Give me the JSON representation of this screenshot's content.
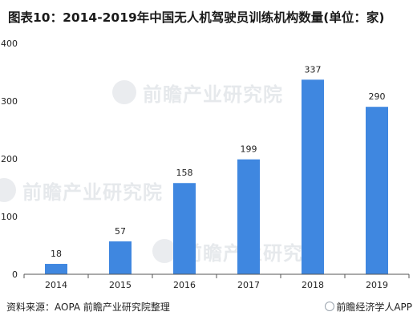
{
  "title": "图表10：2014-2019年中国无人机驾驶员训练机构数量(单位：家)",
  "source": "资料来源：AOPA 前瞻产业研究院整理",
  "app_mark": "前瞻经济学人APP",
  "watermark": "前瞻产业研究院",
  "chart_data": {
    "type": "bar",
    "categories": [
      "2014",
      "2015",
      "2016",
      "2017",
      "2018",
      "2019"
    ],
    "values": [
      18,
      57,
      158,
      199,
      337,
      290
    ],
    "ylim": [
      0,
      400
    ],
    "yticks": [
      0,
      100,
      200,
      300,
      400
    ],
    "bar_color": "#3f87e0",
    "grid": false,
    "legend": "none"
  }
}
